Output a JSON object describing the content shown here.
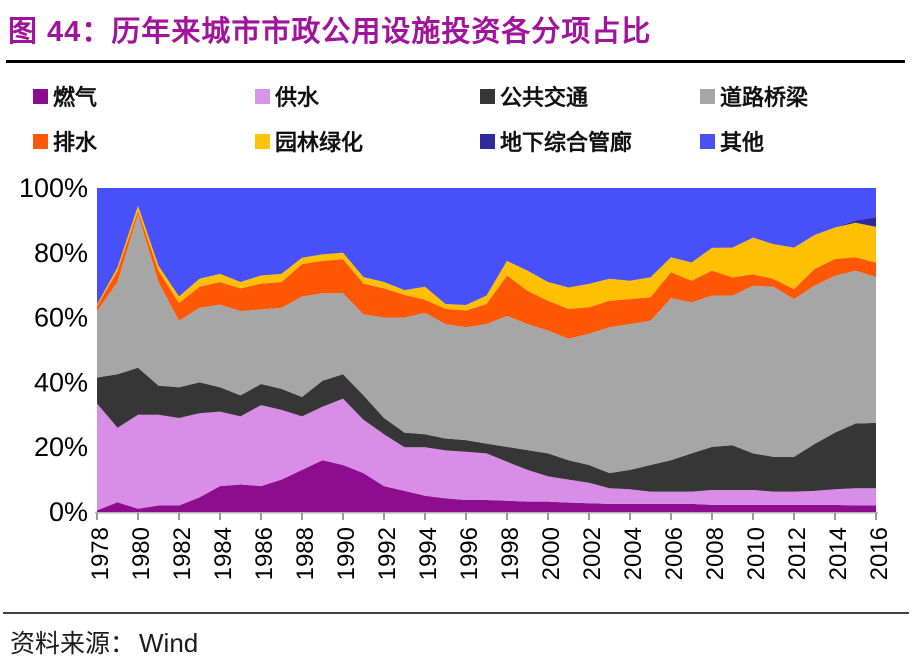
{
  "title": "图 44：历年来城市市政公用设施投资各分项占比",
  "colors": {
    "title": "#a0139b",
    "divider": "#000000",
    "axis_line": "#b3b3b3",
    "tick": "#808080",
    "axis_text": "#000000"
  },
  "legend": {
    "items": [
      {
        "id": "gas",
        "label": "燃气",
        "color": "#8a0d90"
      },
      {
        "id": "water-supply",
        "label": "供水",
        "color": "#d795ea"
      },
      {
        "id": "public-transport",
        "label": "公共交通",
        "color": "#363636"
      },
      {
        "id": "roads-bridges",
        "label": "道路桥梁",
        "color": "#a6a6a6"
      },
      {
        "id": "drainage",
        "label": "排水",
        "color": "#ff5708"
      },
      {
        "id": "landscaping",
        "label": "园林绿化",
        "color": "#ffc307"
      },
      {
        "id": "utility-tunnel",
        "label": "地下综合管廊",
        "color": "#2e2a9d"
      },
      {
        "id": "other",
        "label": "其他",
        "color": "#4952f0"
      }
    ]
  },
  "source": {
    "label": "资料来源：",
    "value": "Wind"
  },
  "chart_data": {
    "type": "area",
    "stacked": true,
    "unit": "%",
    "title": "历年来城市市政公用设施投资各分项占比",
    "xlabel": "",
    "ylabel": "",
    "ylim": [
      0,
      100
    ],
    "grid": false,
    "legend_position": "top",
    "x_tick_step": 2,
    "x": [
      1978,
      1979,
      1980,
      1981,
      1982,
      1983,
      1984,
      1985,
      1986,
      1987,
      1988,
      1989,
      1990,
      1991,
      1992,
      1993,
      1994,
      1995,
      1996,
      1997,
      1998,
      1999,
      2000,
      2001,
      2002,
      2003,
      2004,
      2005,
      2006,
      2007,
      2008,
      2009,
      2010,
      2011,
      2012,
      2013,
      2014,
      2015,
      2016
    ],
    "yticks": [
      {
        "label": "0%",
        "value": 0
      },
      {
        "label": "20%",
        "value": 20
      },
      {
        "label": "40%",
        "value": 40
      },
      {
        "label": "60%",
        "value": 60
      },
      {
        "label": "80%",
        "value": 80
      },
      {
        "label": "100%",
        "value": 100
      }
    ],
    "series": [
      {
        "id": "gas",
        "name": "燃气",
        "color": "#8e0d8e",
        "values": [
          0.5,
          3,
          1,
          2,
          2,
          4.5,
          8,
          8.5,
          8,
          10,
          13,
          16,
          14.5,
          12,
          8,
          6.5,
          5,
          4.2,
          3.7,
          3.7,
          3.5,
          3.2,
          3.2,
          2.9,
          2.7,
          2.5,
          2.5,
          2.5,
          2.5,
          2.5,
          2.2,
          2.2,
          2.2,
          2.2,
          2.2,
          2.2,
          2.2,
          2,
          2
        ]
      },
      {
        "id": "water-supply",
        "name": "供水",
        "color": "#d88de7",
        "values": [
          33,
          23,
          29,
          28,
          27,
          26,
          23,
          21,
          25,
          21.5,
          16.5,
          16.5,
          20.5,
          16.5,
          16,
          13.5,
          15,
          14.8,
          14.9,
          14.4,
          12,
          9.8,
          7.8,
          7.1,
          6.3,
          4.8,
          4.5,
          3.8,
          3.8,
          3.8,
          4.6,
          4.6,
          4.6,
          4.1,
          4.1,
          4.3,
          4.8,
          5.3,
          5.3
        ]
      },
      {
        "id": "public-transport",
        "name": "公共交通",
        "color": "#363636",
        "values": [
          8,
          16.5,
          14.5,
          9,
          9.5,
          9.5,
          7.5,
          6.5,
          6.5,
          6.5,
          6,
          8,
          7.5,
          7.5,
          5,
          4.5,
          4,
          3.7,
          3.6,
          3,
          4.6,
          6.1,
          7.1,
          6,
          5.5,
          4.7,
          6,
          8.2,
          9.7,
          11.8,
          13.3,
          13.8,
          11.3,
          10.7,
          10.7,
          14.5,
          17.5,
          20,
          20.2
        ]
      },
      {
        "id": "roads-bridges",
        "name": "道路桥梁",
        "color": "#a6a6a6",
        "values": [
          20.5,
          28.5,
          47.5,
          32,
          20.5,
          23,
          25.5,
          26,
          23,
          25,
          31,
          27,
          25,
          25,
          31,
          35.5,
          37.5,
          35.3,
          34.8,
          36.9,
          40.4,
          38.9,
          37.9,
          37.5,
          40.5,
          45,
          45,
          44.5,
          50,
          46.6,
          46.7,
          46.2,
          51.7,
          52.5,
          48.7,
          48.8,
          48.4,
          47.2,
          45
        ]
      },
      {
        "id": "drainage",
        "name": "排水",
        "color": "#ff5704",
        "values": [
          1.5,
          3.5,
          1,
          3.5,
          5.5,
          6.5,
          7,
          7,
          8,
          8,
          10,
          10,
          10.5,
          9.5,
          9,
          7,
          4,
          4.7,
          5.2,
          6.2,
          12.5,
          10.3,
          9.2,
          9.2,
          8.2,
          8.2,
          7.7,
          7.3,
          8,
          6.7,
          7.7,
          5.6,
          3.6,
          2.4,
          3.1,
          5.2,
          5.2,
          4.1,
          4.5
        ]
      },
      {
        "id": "landscaping",
        "name": "园林绿化",
        "color": "#ffc003",
        "values": [
          0.5,
          1,
          1.5,
          1.5,
          2,
          2.5,
          2.5,
          2,
          2.5,
          2.5,
          2,
          2,
          2,
          2,
          2,
          1.5,
          4,
          1.5,
          1.7,
          2.6,
          4.5,
          6.2,
          5.8,
          6.6,
          7.2,
          6.8,
          5.7,
          6.1,
          4.6,
          5.6,
          7,
          9.2,
          11.3,
          10.8,
          12.8,
          10.5,
          9.7,
          10.7,
          11
        ]
      },
      {
        "id": "utility-tunnel",
        "name": "地下综合管廊",
        "color": "#2e2a9d",
        "values": [
          0,
          0,
          0,
          0,
          0,
          0,
          0,
          0,
          0,
          0,
          0,
          0,
          0,
          0,
          0,
          0,
          0,
          0,
          0,
          0,
          0,
          0,
          0,
          0,
          0,
          0,
          0,
          0,
          0,
          0,
          0,
          0,
          0,
          0,
          0,
          0,
          0,
          0.7,
          3
        ]
      },
      {
        "id": "other",
        "name": "其他",
        "color": "#4750fb",
        "values": [
          36,
          24.5,
          5.5,
          24,
          33.5,
          28,
          26.5,
          29,
          27,
          26.5,
          21.5,
          20.5,
          20,
          27.5,
          29,
          31.5,
          30.5,
          35.8,
          36.1,
          33.2,
          22.5,
          25.5,
          29,
          30.7,
          29.6,
          28,
          28.6,
          27.6,
          21.4,
          23,
          18.5,
          18.4,
          15.3,
          17.3,
          18.4,
          14.5,
          12.2,
          10,
          9
        ]
      }
    ]
  }
}
